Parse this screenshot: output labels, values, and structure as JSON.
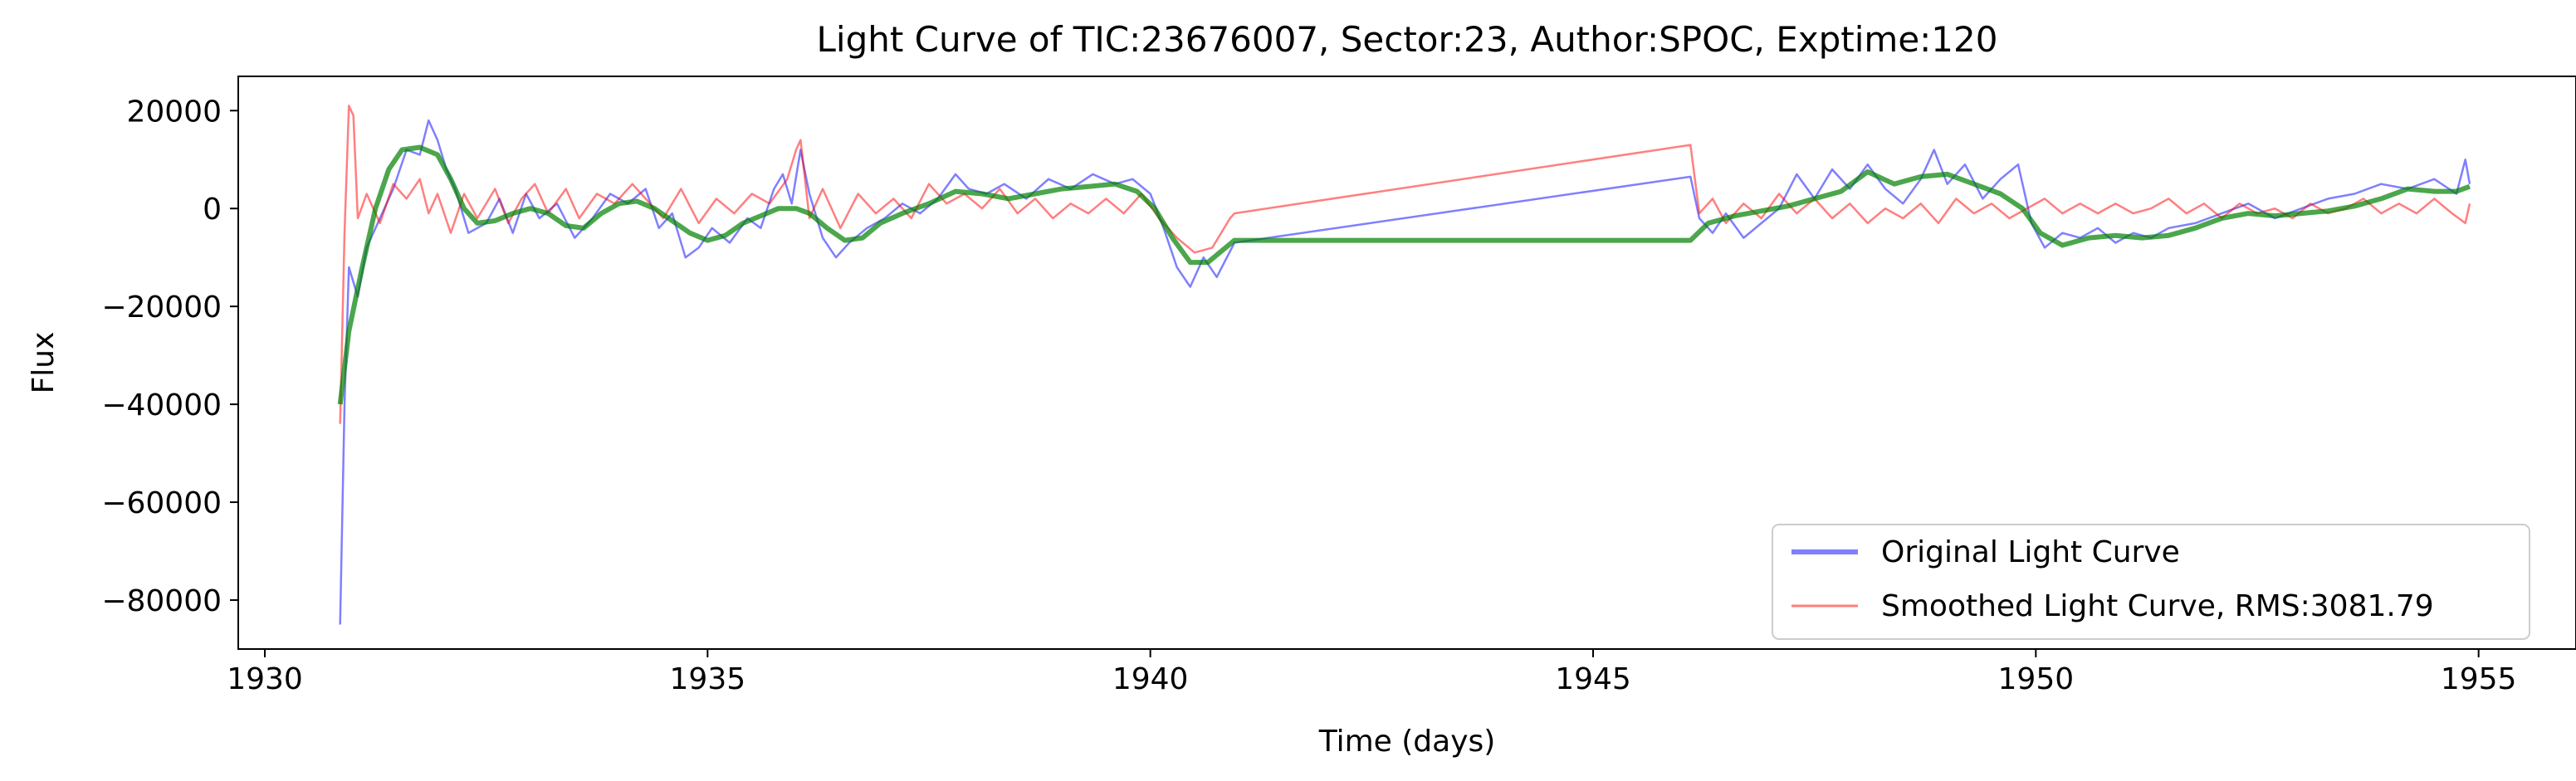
{
  "chart_data": {
    "type": "line",
    "title": "Light Curve of TIC:23676007, Sector:23, Author:SPOC, Exptime:120",
    "xlabel": "Time (days)",
    "ylabel": "Flux",
    "xlim": [
      1929.7,
      1956.1
    ],
    "ylim": [
      -90000,
      27000
    ],
    "xticks": [
      1930,
      1935,
      1940,
      1945,
      1950,
      1955
    ],
    "xtick_labels": [
      "1930",
      "1935",
      "1940",
      "1945",
      "1950",
      "1955"
    ],
    "yticks": [
      -80000,
      -60000,
      -40000,
      -20000,
      0,
      20000
    ],
    "ytick_labels": [
      "−80000",
      "−60000",
      "−40000",
      "−20000",
      "0",
      "20000"
    ],
    "grid": false,
    "legend_position": "lower-right",
    "series": [
      {
        "name": "Original Light Curve",
        "color": "#0000ff",
        "opacity": 0.5,
        "width": 2.5,
        "in_legend": true,
        "points": [
          [
            1930.85,
            -85000
          ],
          [
            1930.9,
            -40000
          ],
          [
            1930.95,
            -12000
          ],
          [
            1931.05,
            -18000
          ],
          [
            1931.15,
            -8000
          ],
          [
            1931.3,
            -2000
          ],
          [
            1931.45,
            4000
          ],
          [
            1931.6,
            12000
          ],
          [
            1931.75,
            11000
          ],
          [
            1931.85,
            18000
          ],
          [
            1931.95,
            14000
          ],
          [
            1932.05,
            8000
          ],
          [
            1932.15,
            4000
          ],
          [
            1932.3,
            -5000
          ],
          [
            1932.5,
            -3000
          ],
          [
            1932.65,
            2000
          ],
          [
            1932.8,
            -5000
          ],
          [
            1932.95,
            3000
          ],
          [
            1933.1,
            -2000
          ],
          [
            1933.3,
            1000
          ],
          [
            1933.5,
            -6000
          ],
          [
            1933.7,
            -2000
          ],
          [
            1933.9,
            3000
          ],
          [
            1934.1,
            1000
          ],
          [
            1934.3,
            4000
          ],
          [
            1934.45,
            -4000
          ],
          [
            1934.6,
            -1000
          ],
          [
            1934.75,
            -10000
          ],
          [
            1934.9,
            -8000
          ],
          [
            1935.05,
            -4000
          ],
          [
            1935.25,
            -7000
          ],
          [
            1935.45,
            -2000
          ],
          [
            1935.6,
            -4000
          ],
          [
            1935.75,
            4000
          ],
          [
            1935.85,
            7000
          ],
          [
            1935.95,
            1000
          ],
          [
            1936.05,
            12000
          ],
          [
            1936.15,
            3000
          ],
          [
            1936.3,
            -6000
          ],
          [
            1936.45,
            -10000
          ],
          [
            1936.6,
            -7000
          ],
          [
            1936.8,
            -4000
          ],
          [
            1937.0,
            -2000
          ],
          [
            1937.2,
            1000
          ],
          [
            1937.4,
            -1000
          ],
          [
            1937.6,
            2000
          ],
          [
            1937.8,
            7000
          ],
          [
            1937.95,
            4000
          ],
          [
            1938.15,
            3000
          ],
          [
            1938.35,
            5000
          ],
          [
            1938.6,
            2000
          ],
          [
            1938.85,
            6000
          ],
          [
            1939.1,
            4000
          ],
          [
            1939.35,
            7000
          ],
          [
            1939.6,
            5000
          ],
          [
            1939.8,
            6000
          ],
          [
            1940.0,
            3000
          ],
          [
            1940.15,
            -4000
          ],
          [
            1940.3,
            -12000
          ],
          [
            1940.45,
            -16000
          ],
          [
            1940.6,
            -10000
          ],
          [
            1940.75,
            -14000
          ],
          [
            1940.95,
            -7000
          ],
          [
            1946.1,
            6500
          ],
          [
            1946.2,
            -2000
          ],
          [
            1946.35,
            -5000
          ],
          [
            1946.5,
            -1000
          ],
          [
            1946.7,
            -6000
          ],
          [
            1946.9,
            -3000
          ],
          [
            1947.1,
            0
          ],
          [
            1947.3,
            7000
          ],
          [
            1947.5,
            2000
          ],
          [
            1947.7,
            8000
          ],
          [
            1947.9,
            4000
          ],
          [
            1948.1,
            9000
          ],
          [
            1948.3,
            4000
          ],
          [
            1948.5,
            1000
          ],
          [
            1948.7,
            6000
          ],
          [
            1948.85,
            12000
          ],
          [
            1949.0,
            5000
          ],
          [
            1949.2,
            9000
          ],
          [
            1949.4,
            2000
          ],
          [
            1949.6,
            6000
          ],
          [
            1949.8,
            9000
          ],
          [
            1949.95,
            -3000
          ],
          [
            1950.1,
            -8000
          ],
          [
            1950.3,
            -5000
          ],
          [
            1950.5,
            -6000
          ],
          [
            1950.7,
            -4000
          ],
          [
            1950.9,
            -7000
          ],
          [
            1951.1,
            -5000
          ],
          [
            1951.3,
            -6000
          ],
          [
            1951.5,
            -4000
          ],
          [
            1951.8,
            -3000
          ],
          [
            1952.1,
            -1000
          ],
          [
            1952.4,
            1000
          ],
          [
            1952.7,
            -2000
          ],
          [
            1953.0,
            0
          ],
          [
            1953.3,
            2000
          ],
          [
            1953.6,
            3000
          ],
          [
            1953.9,
            5000
          ],
          [
            1954.2,
            4000
          ],
          [
            1954.5,
            6000
          ],
          [
            1954.75,
            3000
          ],
          [
            1954.85,
            10000
          ],
          [
            1954.9,
            5000
          ]
        ]
      },
      {
        "name": "Smoothed Light Curve, RMS:3081.79",
        "color": "#ff0000",
        "opacity": 0.5,
        "width": 2.5,
        "in_legend": true,
        "points": [
          [
            1930.85,
            -44000
          ],
          [
            1930.9,
            -5000
          ],
          [
            1930.95,
            21000
          ],
          [
            1931.0,
            19000
          ],
          [
            1931.05,
            -2000
          ],
          [
            1931.15,
            3000
          ],
          [
            1931.3,
            -3000
          ],
          [
            1931.45,
            5000
          ],
          [
            1931.6,
            2000
          ],
          [
            1931.75,
            6000
          ],
          [
            1931.85,
            -1000
          ],
          [
            1931.95,
            3000
          ],
          [
            1932.1,
            -5000
          ],
          [
            1932.25,
            3000
          ],
          [
            1932.4,
            -2000
          ],
          [
            1932.6,
            4000
          ],
          [
            1932.75,
            -3000
          ],
          [
            1932.9,
            2000
          ],
          [
            1933.05,
            5000
          ],
          [
            1933.2,
            -1000
          ],
          [
            1933.4,
            4000
          ],
          [
            1933.55,
            -2000
          ],
          [
            1933.75,
            3000
          ],
          [
            1933.95,
            1000
          ],
          [
            1934.15,
            5000
          ],
          [
            1934.3,
            2000
          ],
          [
            1934.5,
            -2000
          ],
          [
            1934.7,
            4000
          ],
          [
            1934.9,
            -3000
          ],
          [
            1935.1,
            2000
          ],
          [
            1935.3,
            -1000
          ],
          [
            1935.5,
            3000
          ],
          [
            1935.7,
            1000
          ],
          [
            1935.9,
            6000
          ],
          [
            1936.0,
            12000
          ],
          [
            1936.05,
            14000
          ],
          [
            1936.15,
            -2000
          ],
          [
            1936.3,
            4000
          ],
          [
            1936.5,
            -4000
          ],
          [
            1936.7,
            3000
          ],
          [
            1936.9,
            -1000
          ],
          [
            1937.1,
            2000
          ],
          [
            1937.3,
            -2000
          ],
          [
            1937.5,
            5000
          ],
          [
            1937.7,
            1000
          ],
          [
            1937.9,
            3000
          ],
          [
            1938.1,
            0
          ],
          [
            1938.3,
            4000
          ],
          [
            1938.5,
            -1000
          ],
          [
            1938.7,
            2000
          ],
          [
            1938.9,
            -2000
          ],
          [
            1939.1,
            1000
          ],
          [
            1939.3,
            -1000
          ],
          [
            1939.5,
            2000
          ],
          [
            1939.7,
            -1000
          ],
          [
            1939.9,
            3000
          ],
          [
            1940.1,
            -2000
          ],
          [
            1940.3,
            -6000
          ],
          [
            1940.5,
            -9000
          ],
          [
            1940.7,
            -8000
          ],
          [
            1940.9,
            -2000
          ],
          [
            1940.95,
            -1000
          ],
          [
            1946.1,
            13000
          ],
          [
            1946.2,
            -1000
          ],
          [
            1946.35,
            2000
          ],
          [
            1946.5,
            -3000
          ],
          [
            1946.7,
            1000
          ],
          [
            1946.9,
            -2000
          ],
          [
            1947.1,
            3000
          ],
          [
            1947.3,
            -1000
          ],
          [
            1947.5,
            2000
          ],
          [
            1947.7,
            -2000
          ],
          [
            1947.9,
            1000
          ],
          [
            1948.1,
            -3000
          ],
          [
            1948.3,
            0
          ],
          [
            1948.5,
            -2000
          ],
          [
            1948.7,
            1000
          ],
          [
            1948.9,
            -3000
          ],
          [
            1949.1,
            2000
          ],
          [
            1949.3,
            -1000
          ],
          [
            1949.5,
            1000
          ],
          [
            1949.7,
            -2000
          ],
          [
            1949.9,
            0
          ],
          [
            1950.1,
            2000
          ],
          [
            1950.3,
            -1000
          ],
          [
            1950.5,
            1000
          ],
          [
            1950.7,
            -1000
          ],
          [
            1950.9,
            1000
          ],
          [
            1951.1,
            -1000
          ],
          [
            1951.3,
            0
          ],
          [
            1951.5,
            2000
          ],
          [
            1951.7,
            -1000
          ],
          [
            1951.9,
            1000
          ],
          [
            1952.1,
            -2000
          ],
          [
            1952.3,
            1000
          ],
          [
            1952.5,
            -1000
          ],
          [
            1952.7,
            0
          ],
          [
            1952.9,
            -2000
          ],
          [
            1953.1,
            1000
          ],
          [
            1953.3,
            -1000
          ],
          [
            1953.5,
            0
          ],
          [
            1953.7,
            2000
          ],
          [
            1953.9,
            -1000
          ],
          [
            1954.1,
            1000
          ],
          [
            1954.3,
            -1000
          ],
          [
            1954.5,
            2000
          ],
          [
            1954.7,
            -1000
          ],
          [
            1954.85,
            -3000
          ],
          [
            1954.9,
            1000
          ]
        ]
      },
      {
        "name": "",
        "color": "#008000",
        "opacity": 0.7,
        "width": 6,
        "in_legend": false,
        "points": [
          [
            1930.85,
            -40000
          ],
          [
            1930.95,
            -25000
          ],
          [
            1931.1,
            -12000
          ],
          [
            1931.25,
            0
          ],
          [
            1931.4,
            8000
          ],
          [
            1931.55,
            12000
          ],
          [
            1931.75,
            12500
          ],
          [
            1931.95,
            11000
          ],
          [
            1932.1,
            6000
          ],
          [
            1932.25,
            0
          ],
          [
            1932.4,
            -3000
          ],
          [
            1932.6,
            -2500
          ],
          [
            1932.8,
            -1000
          ],
          [
            1933.0,
            0
          ],
          [
            1933.2,
            -1000
          ],
          [
            1933.4,
            -3500
          ],
          [
            1933.6,
            -4000
          ],
          [
            1933.8,
            -1000
          ],
          [
            1934.0,
            1000
          ],
          [
            1934.2,
            1500
          ],
          [
            1934.4,
            0
          ],
          [
            1934.6,
            -2500
          ],
          [
            1934.8,
            -5000
          ],
          [
            1935.0,
            -6500
          ],
          [
            1935.2,
            -5500
          ],
          [
            1935.4,
            -3000
          ],
          [
            1935.6,
            -1500
          ],
          [
            1935.8,
            0
          ],
          [
            1936.0,
            0
          ],
          [
            1936.15,
            -1000
          ],
          [
            1936.35,
            -4000
          ],
          [
            1936.55,
            -6500
          ],
          [
            1936.75,
            -6000
          ],
          [
            1936.95,
            -3000
          ],
          [
            1937.2,
            -1000
          ],
          [
            1937.5,
            1000
          ],
          [
            1937.8,
            3500
          ],
          [
            1938.1,
            3000
          ],
          [
            1938.4,
            2000
          ],
          [
            1938.7,
            3000
          ],
          [
            1939.0,
            4000
          ],
          [
            1939.3,
            4500
          ],
          [
            1939.6,
            5000
          ],
          [
            1939.85,
            3500
          ],
          [
            1940.05,
            0
          ],
          [
            1940.25,
            -6000
          ],
          [
            1940.45,
            -11000
          ],
          [
            1940.65,
            -11000
          ],
          [
            1940.85,
            -8000
          ],
          [
            1940.95,
            -6500
          ],
          [
            1946.1,
            -6500
          ],
          [
            1946.3,
            -3000
          ],
          [
            1946.6,
            -1500
          ],
          [
            1946.9,
            -500
          ],
          [
            1947.2,
            500
          ],
          [
            1947.5,
            2000
          ],
          [
            1947.8,
            3500
          ],
          [
            1948.1,
            7500
          ],
          [
            1948.4,
            5000
          ],
          [
            1948.7,
            6500
          ],
          [
            1949.0,
            7000
          ],
          [
            1949.3,
            5000
          ],
          [
            1949.6,
            3000
          ],
          [
            1949.85,
            0
          ],
          [
            1950.05,
            -5000
          ],
          [
            1950.3,
            -7500
          ],
          [
            1950.6,
            -6000
          ],
          [
            1950.9,
            -5500
          ],
          [
            1951.2,
            -6000
          ],
          [
            1951.5,
            -5500
          ],
          [
            1951.8,
            -4000
          ],
          [
            1952.1,
            -2000
          ],
          [
            1952.4,
            -1000
          ],
          [
            1952.7,
            -1500
          ],
          [
            1953.0,
            -1000
          ],
          [
            1953.3,
            -500
          ],
          [
            1953.6,
            500
          ],
          [
            1953.9,
            2000
          ],
          [
            1954.2,
            4000
          ],
          [
            1954.5,
            3500
          ],
          [
            1954.75,
            3500
          ],
          [
            1954.9,
            4500
          ]
        ]
      }
    ]
  }
}
